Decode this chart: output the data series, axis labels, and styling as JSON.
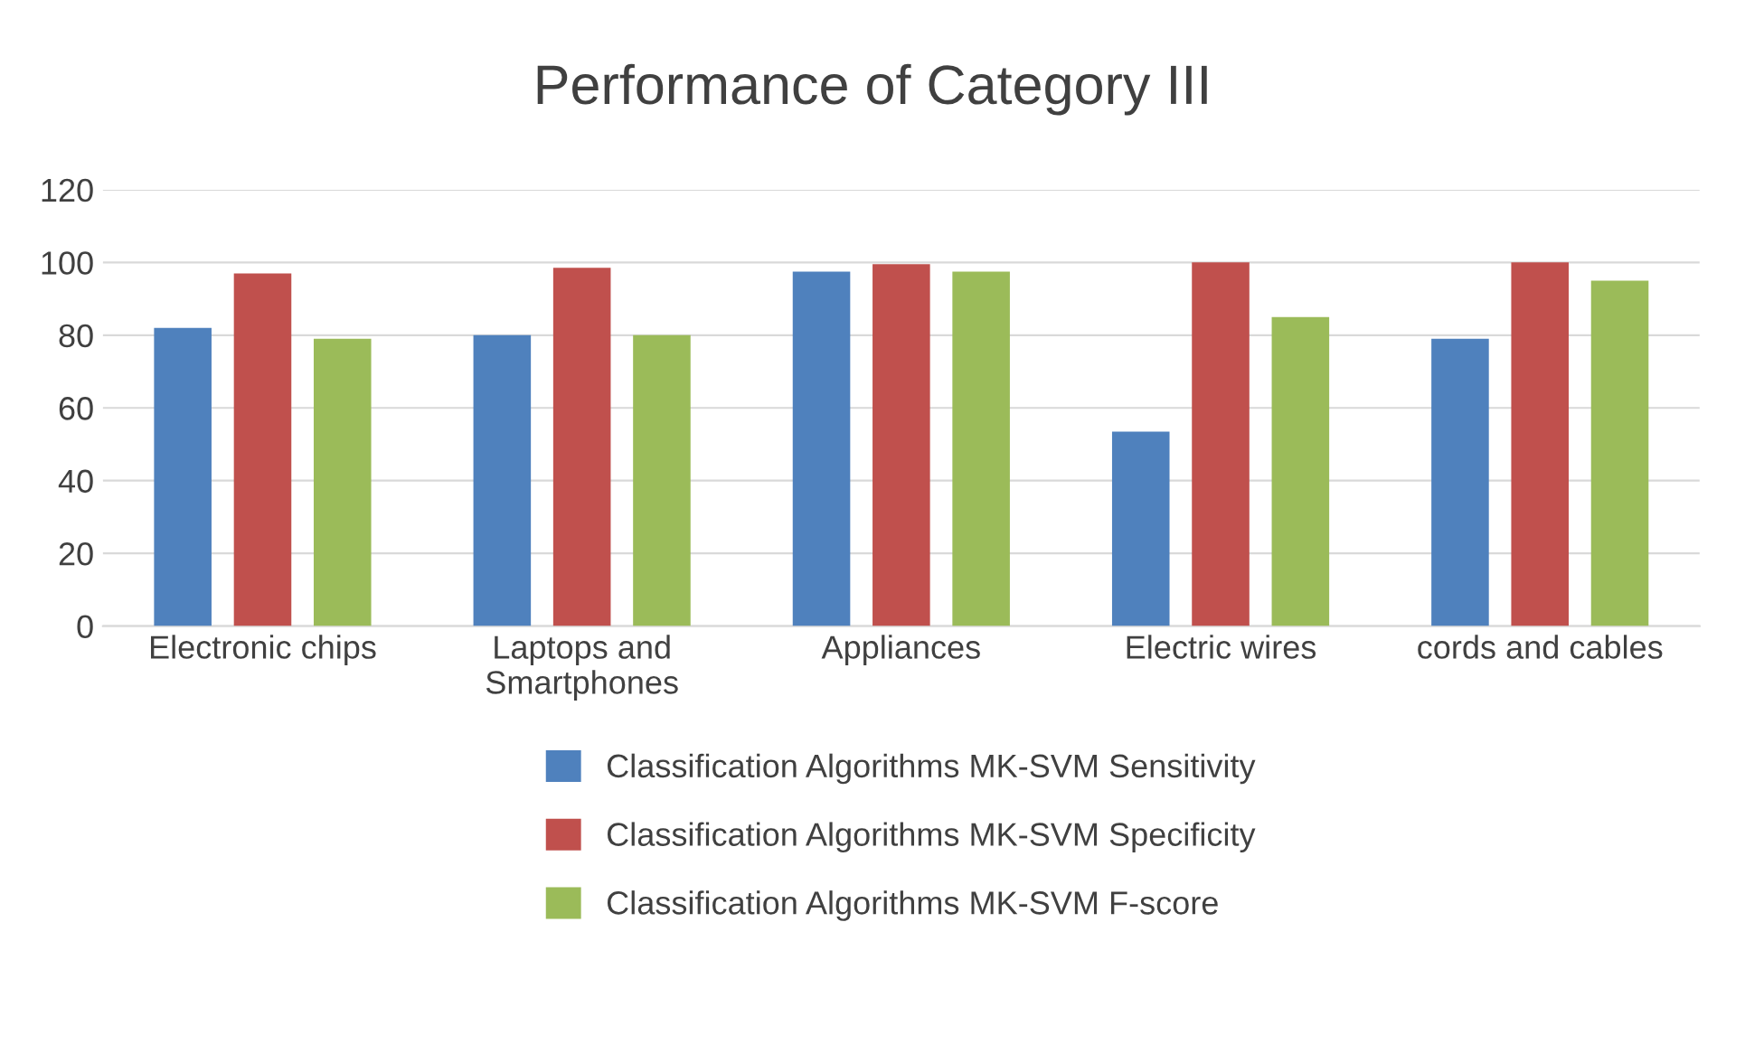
{
  "chart_data": {
    "type": "bar",
    "title": "Performance of Category III",
    "categories": [
      "Electronic chips",
      "Laptops and\nSmartphones",
      "Appliances",
      "Electric wires",
      "cords and cables"
    ],
    "series": [
      {
        "name": "Classification Algorithms MK-SVM Sensitivity",
        "color": "#4f81bd",
        "values": [
          82,
          80,
          97.5,
          53.5,
          79
        ]
      },
      {
        "name": "Classification Algorithms MK-SVM Specificity",
        "color": "#c0504d",
        "values": [
          97,
          98.5,
          99.5,
          100,
          100
        ]
      },
      {
        "name": "Classification Algorithms MK-SVM F-score",
        "color": "#9bbb59",
        "values": [
          79,
          80,
          97.5,
          85,
          95
        ]
      }
    ],
    "ylim": [
      0,
      120
    ],
    "yticks": [
      0,
      20,
      40,
      60,
      80,
      100,
      120
    ],
    "grid": "y",
    "legend": "bottom"
  }
}
